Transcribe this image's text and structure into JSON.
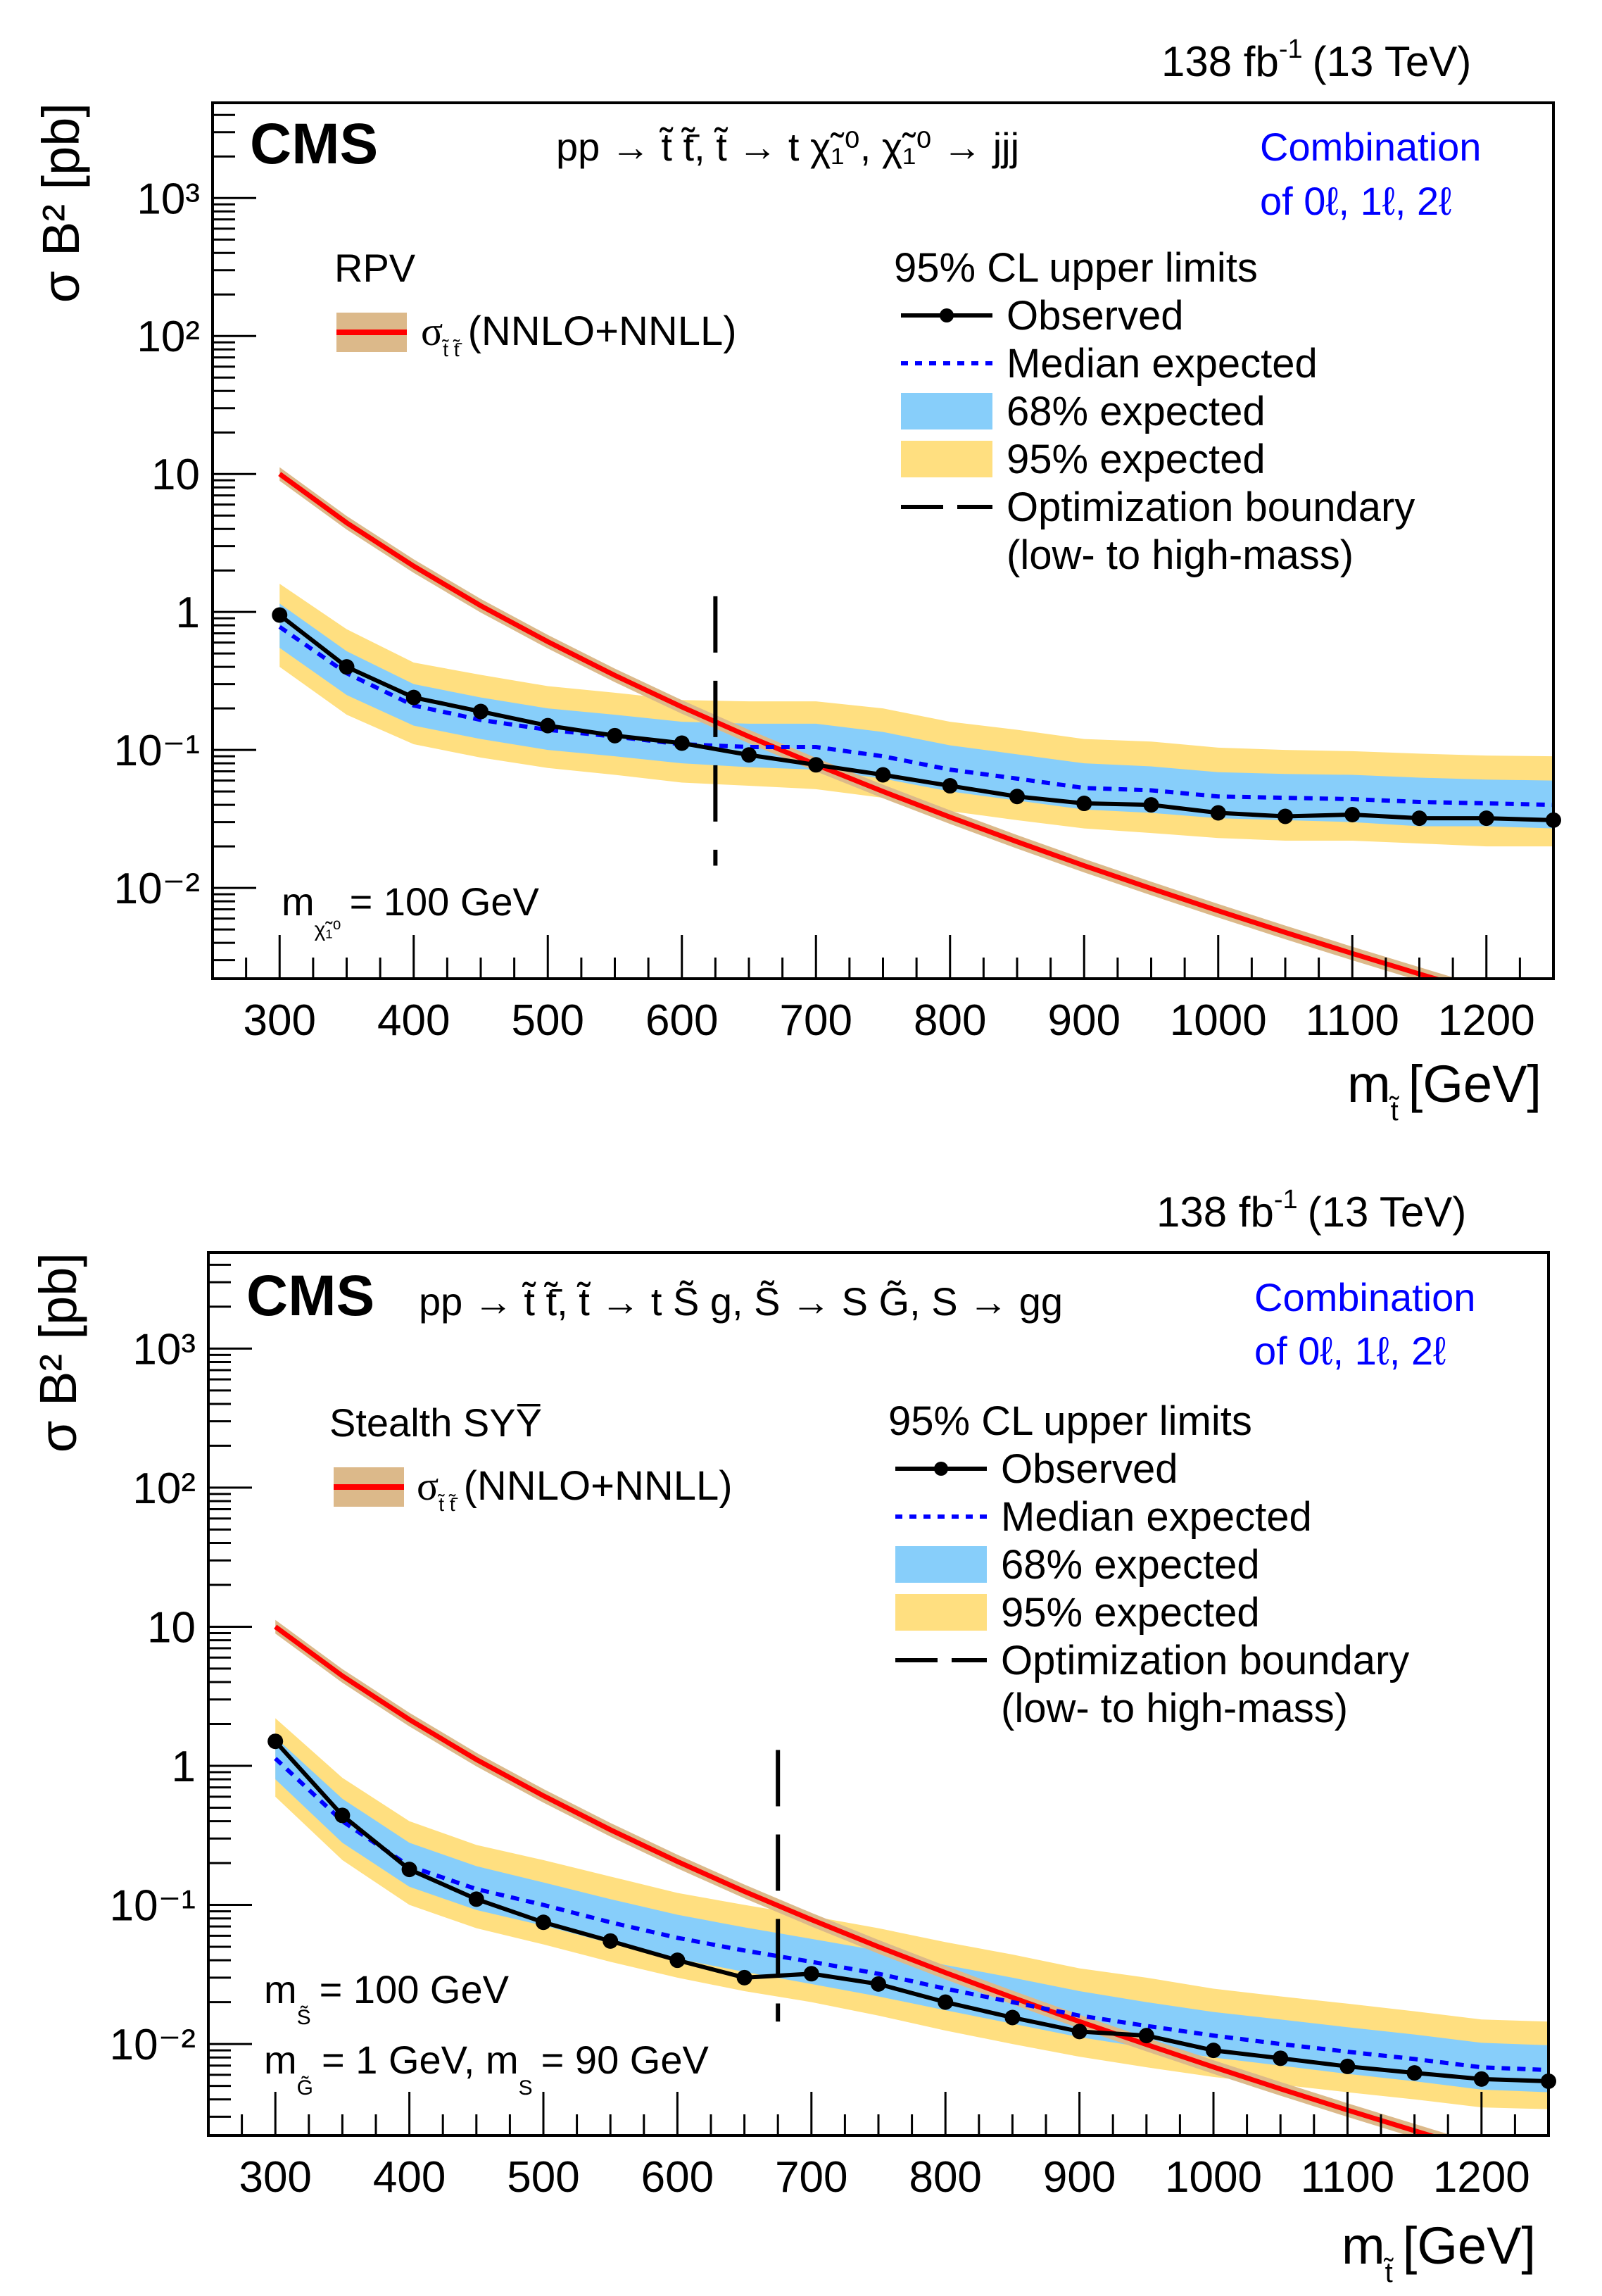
{
  "chart_data": [
    {
      "type": "line",
      "panel": "top",
      "lumi_label": "138 fb",
      "lumi_sup": "-1",
      "energy_label": "(13 TeV)",
      "experiment": "CMS",
      "process": "pp → t̃ t̃̄, t̃ → t χ̃₁⁰, χ̃₁⁰ → jjj",
      "combination_line1": "Combination",
      "combination_line2": "of 0ℓ, 1ℓ, 2ℓ",
      "model_label": "RPV",
      "xsec_legend": "σ",
      "xsec_legend_sub": "t̃ t̃̄",
      "xsec_legend_suffix": "(NNLO+NNLL)",
      "legend_header": "95% CL upper limits",
      "legend": [
        "Observed",
        "Median expected",
        "68% expected",
        "95% expected",
        "Optimization boundary",
        "(low- to high-mass)"
      ],
      "mass_annotations": [
        {
          "label": "m",
          "sub": "χ̃₁⁰",
          "text": "= 100 GeV"
        }
      ],
      "xlabel": "m",
      "xlabel_sub": "t̃",
      "xlabel_unit": "[GeV]",
      "ylabel": "σ B² [pb]",
      "xlim": [
        250,
        1250
      ],
      "ylim": [
        0.0022,
        4900
      ],
      "yscale": "log",
      "xticks": [
        300,
        400,
        500,
        600,
        700,
        800,
        900,
        1000,
        1100,
        1200
      ],
      "yticks": [
        "10⁻²",
        "10⁻¹",
        "1",
        "10",
        "10²",
        "10³"
      ],
      "x": [
        300,
        350,
        400,
        450,
        500,
        550,
        600,
        650,
        700,
        750,
        800,
        850,
        900,
        950,
        1000,
        1050,
        1100,
        1150,
        1200,
        1250
      ],
      "observed": [
        0.95,
        0.4,
        0.24,
        0.19,
        0.15,
        0.127,
        0.112,
        0.092,
        0.078,
        0.066,
        0.055,
        0.046,
        0.041,
        0.04,
        0.035,
        0.033,
        0.034,
        0.032,
        0.032,
        0.031
      ],
      "expected_median": [
        0.78,
        0.36,
        0.21,
        0.165,
        0.14,
        0.125,
        0.11,
        0.105,
        0.105,
        0.09,
        0.072,
        0.062,
        0.053,
        0.051,
        0.046,
        0.045,
        0.044,
        0.042,
        0.041,
        0.04
      ],
      "expected_68_low": [
        0.55,
        0.25,
        0.15,
        0.12,
        0.1,
        0.09,
        0.08,
        0.075,
        0.072,
        0.062,
        0.05,
        0.043,
        0.037,
        0.035,
        0.032,
        0.031,
        0.03,
        0.028,
        0.028,
        0.027
      ],
      "expected_68_high": [
        1.15,
        0.52,
        0.3,
        0.24,
        0.2,
        0.18,
        0.16,
        0.155,
        0.155,
        0.135,
        0.108,
        0.093,
        0.08,
        0.076,
        0.069,
        0.067,
        0.066,
        0.063,
        0.061,
        0.06
      ],
      "expected_95_low": [
        0.4,
        0.18,
        0.11,
        0.088,
        0.074,
        0.066,
        0.058,
        0.055,
        0.052,
        0.045,
        0.036,
        0.031,
        0.027,
        0.025,
        0.023,
        0.022,
        0.022,
        0.021,
        0.02,
        0.02
      ],
      "expected_95_high": [
        1.6,
        0.75,
        0.43,
        0.35,
        0.29,
        0.26,
        0.23,
        0.225,
        0.225,
        0.2,
        0.16,
        0.14,
        0.12,
        0.115,
        0.104,
        0.1,
        0.098,
        0.094,
        0.091,
        0.09
      ],
      "xsec_x": [
        300,
        350,
        400,
        450,
        500,
        550,
        600,
        650,
        700,
        750,
        800,
        850,
        900,
        950,
        1000,
        1050,
        1100,
        1150,
        1200
      ],
      "xsec": [
        10.0,
        4.43,
        2.15,
        1.11,
        0.609,
        0.347,
        0.205,
        0.125,
        0.0783,
        0.05,
        0.0326,
        0.0216,
        0.0145,
        0.00991,
        0.00683,
        0.00476,
        0.00335,
        0.00238,
        0.0017
      ],
      "optimization_boundary": 625,
      "boundary_ylim": [
        0.0145,
        1.3
      ],
      "colors": {
        "observed": "#000000",
        "median": "#0000ff",
        "band68": "#87cefa",
        "band95": "#ffdf80",
        "xsec_line": "#ff0000",
        "xsec_band": "#dcb98a",
        "combination": "#0000ff"
      }
    },
    {
      "type": "line",
      "panel": "bottom",
      "lumi_label": "138 fb",
      "lumi_sup": "-1",
      "energy_label": "(13 TeV)",
      "experiment": "CMS",
      "process": "pp → t̃ t̃̄, t̃ → t S̃ g, S̃ → S G̃, S → gg",
      "combination_line1": "Combination",
      "combination_line2": "of 0ℓ, 1ℓ, 2ℓ",
      "model_label": "Stealth SYY̅",
      "xsec_legend": "σ",
      "xsec_legend_sub": "t̃ t̃̄",
      "xsec_legend_suffix": "(NNLO+NNLL)",
      "legend_header": "95% CL upper limits",
      "legend": [
        "Observed",
        "Median expected",
        "68% expected",
        "95% expected",
        "Optimization boundary",
        "(low- to high-mass)"
      ],
      "mass_annotations": [
        {
          "label": "m",
          "sub": "S̃",
          "text": "= 100 GeV"
        },
        {
          "label": "m",
          "sub": "G̃",
          "text": "= 1 GeV, m",
          "sub2": "S",
          "text2": "= 90 GeV"
        }
      ],
      "xlabel": "m",
      "xlabel_sub": "t̃",
      "xlabel_unit": "[GeV]",
      "ylabel": "σ B² [pb]",
      "xlim": [
        250,
        1250
      ],
      "ylim": [
        0.0022,
        4900
      ],
      "yscale": "log",
      "xticks": [
        300,
        400,
        500,
        600,
        700,
        800,
        900,
        1000,
        1100,
        1200
      ],
      "yticks": [
        "10⁻²",
        "10⁻¹",
        "1",
        "10",
        "10²",
        "10³"
      ],
      "x": [
        300,
        350,
        400,
        450,
        500,
        550,
        600,
        650,
        700,
        750,
        800,
        850,
        900,
        950,
        1000,
        1050,
        1100,
        1150,
        1200,
        1250
      ],
      "observed": [
        1.5,
        0.44,
        0.18,
        0.11,
        0.075,
        0.055,
        0.04,
        0.03,
        0.032,
        0.027,
        0.02,
        0.0155,
        0.0123,
        0.0115,
        0.009,
        0.0079,
        0.0069,
        0.0062,
        0.0056,
        0.0054
      ],
      "expected_median": [
        1.13,
        0.4,
        0.19,
        0.13,
        0.1,
        0.075,
        0.058,
        0.047,
        0.039,
        0.032,
        0.025,
        0.02,
        0.016,
        0.0135,
        0.0115,
        0.01,
        0.0088,
        0.0078,
        0.0068,
        0.0065
      ],
      "expected_68_low": [
        0.8,
        0.28,
        0.135,
        0.092,
        0.071,
        0.053,
        0.041,
        0.033,
        0.027,
        0.022,
        0.0175,
        0.014,
        0.0112,
        0.0094,
        0.008,
        0.007,
        0.0061,
        0.0054,
        0.0047,
        0.0045
      ],
      "expected_68_high": [
        1.6,
        0.58,
        0.28,
        0.19,
        0.145,
        0.11,
        0.085,
        0.069,
        0.057,
        0.047,
        0.037,
        0.03,
        0.024,
        0.02,
        0.017,
        0.015,
        0.0132,
        0.0117,
        0.0102,
        0.0098
      ],
      "expected_95_low": [
        0.6,
        0.21,
        0.1,
        0.068,
        0.052,
        0.039,
        0.03,
        0.024,
        0.02,
        0.016,
        0.0125,
        0.01,
        0.0081,
        0.0068,
        0.0058,
        0.0051,
        0.0045,
        0.004,
        0.0035,
        0.0034
      ],
      "expected_95_high": [
        2.2,
        0.82,
        0.4,
        0.27,
        0.21,
        0.16,
        0.122,
        0.1,
        0.083,
        0.068,
        0.054,
        0.044,
        0.035,
        0.03,
        0.025,
        0.022,
        0.0195,
        0.0172,
        0.015,
        0.0145
      ],
      "xsec_x": [
        300,
        350,
        400,
        450,
        500,
        550,
        600,
        650,
        700,
        750,
        800,
        850,
        900,
        950,
        1000,
        1050,
        1100,
        1150,
        1200
      ],
      "xsec": [
        10.0,
        4.43,
        2.15,
        1.11,
        0.609,
        0.347,
        0.205,
        0.125,
        0.0783,
        0.05,
        0.0326,
        0.0216,
        0.0145,
        0.00991,
        0.00683,
        0.00476,
        0.00335,
        0.00238,
        0.0017
      ],
      "optimization_boundary": 675,
      "boundary_ylim": [
        0.0145,
        1.3
      ],
      "colors": {
        "observed": "#000000",
        "median": "#0000ff",
        "band68": "#87cefa",
        "band95": "#ffdf80",
        "xsec_line": "#ff0000",
        "xsec_band": "#dcb98a",
        "combination": "#0000ff"
      }
    }
  ]
}
